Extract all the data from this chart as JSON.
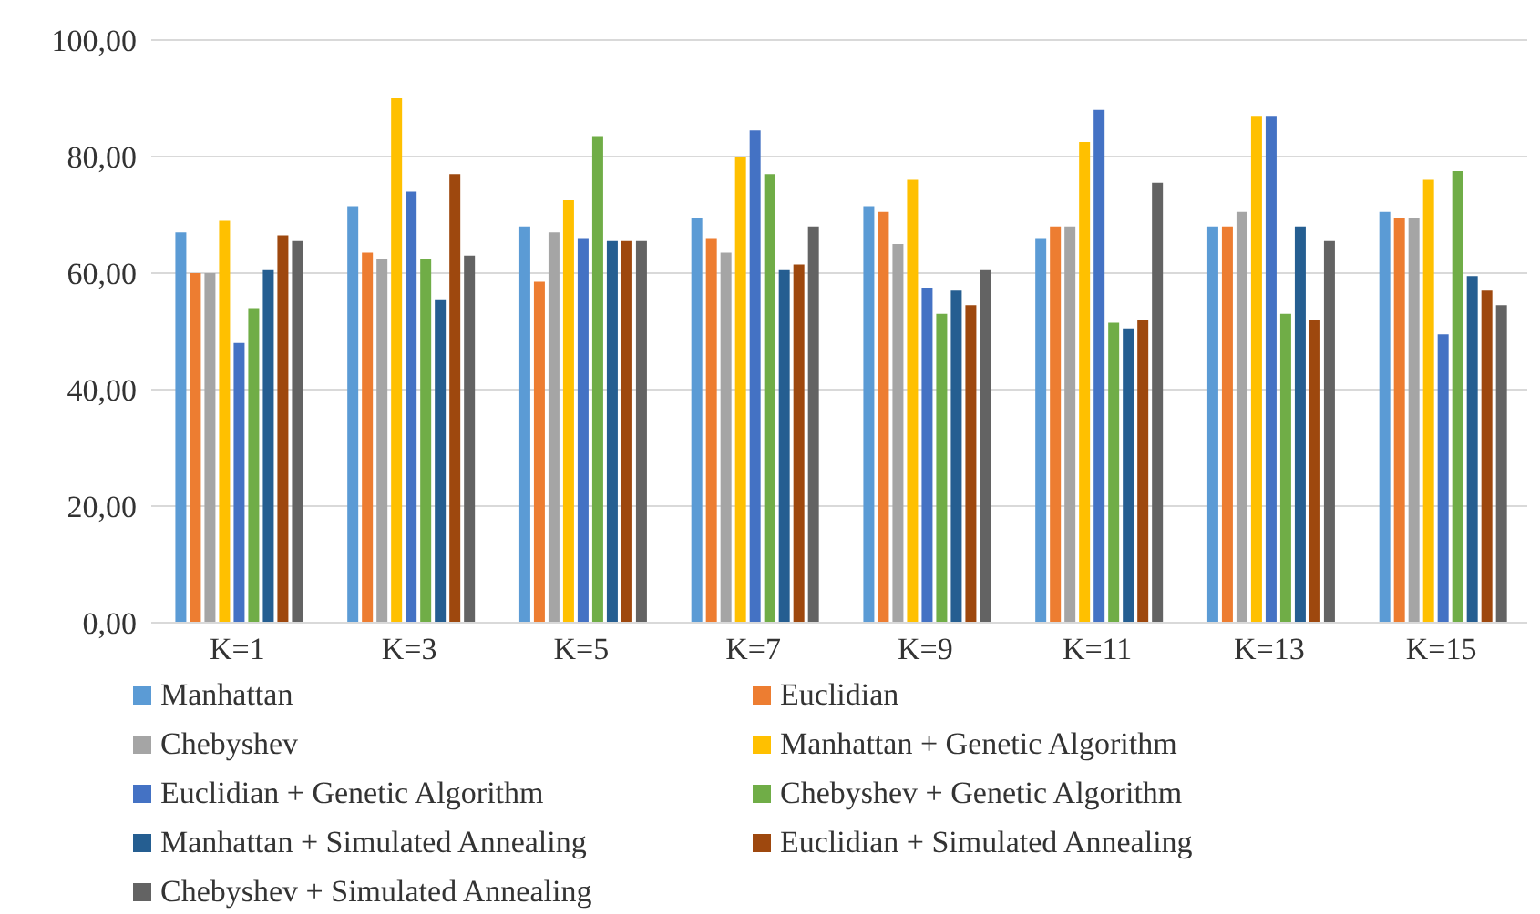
{
  "chart_data": {
    "type": "bar",
    "categories": [
      "K=1",
      "K=3",
      "K=5",
      "K=7",
      "K=9",
      "K=11",
      "K=13",
      "K=15"
    ],
    "series": [
      {
        "name": "Manhattan",
        "color": "#5b9bd5",
        "values": [
          67,
          71.5,
          68,
          69.5,
          71.5,
          66,
          68,
          70.5
        ]
      },
      {
        "name": "Euclidian",
        "color": "#ed7d31",
        "values": [
          60,
          63.5,
          58.5,
          66,
          70.5,
          68,
          68,
          69.5
        ]
      },
      {
        "name": "Chebyshev",
        "color": "#a5a5a5",
        "values": [
          60,
          62.5,
          67,
          63.5,
          65,
          68,
          70.5,
          69.5
        ]
      },
      {
        "name": "Manhattan + Genetic Algorithm",
        "color": "#ffc000",
        "values": [
          69,
          90,
          72.5,
          80,
          76,
          82.5,
          87,
          76
        ]
      },
      {
        "name": "Euclidian + Genetic Algorithm",
        "color": "#4472c4",
        "values": [
          48,
          74,
          66,
          84.5,
          57.5,
          88,
          87,
          49.5
        ]
      },
      {
        "name": "Chebyshev + Genetic Algorithm",
        "color": "#70ad47",
        "values": [
          54,
          62.5,
          83.5,
          77,
          53,
          51.5,
          53,
          77.5
        ]
      },
      {
        "name": "Manhattan + Simulated Annealing",
        "color": "#255e91",
        "values": [
          60.5,
          55.5,
          65.5,
          60.5,
          57,
          50.5,
          68,
          59.5
        ]
      },
      {
        "name": "Euclidian + Simulated Annealing",
        "color": "#9e480e",
        "values": [
          66.5,
          77,
          65.5,
          61.5,
          54.5,
          52,
          52,
          57
        ]
      },
      {
        "name": "Chebyshev + Simulated Annealing",
        "color": "#636363",
        "values": [
          65.5,
          63,
          65.5,
          68,
          60.5,
          75.5,
          65.5,
          54.5
        ]
      }
    ],
    "ylim": [
      0,
      100
    ],
    "yticks": [
      {
        "value": 0,
        "label": "0,00"
      },
      {
        "value": 20,
        "label": "20,00"
      },
      {
        "value": 40,
        "label": "40,00"
      },
      {
        "value": 60,
        "label": "60,00"
      },
      {
        "value": 80,
        "label": "80,00"
      },
      {
        "value": 100,
        "label": "100,00"
      }
    ],
    "grid": "y",
    "legend": "bottom"
  }
}
